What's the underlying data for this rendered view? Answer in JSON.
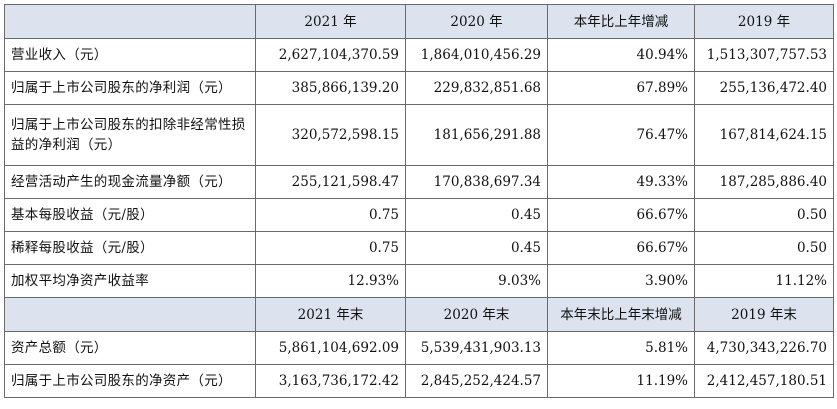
{
  "table": {
    "header1": [
      "2021 年",
      "2020 年",
      "本年比上年增减",
      "2019 年"
    ],
    "rows1": [
      {
        "label": "营业收入（元）",
        "values": [
          "2,627,104,370.59",
          "1,864,010,456.29",
          "40.94%",
          "1,513,307,757.53"
        ]
      },
      {
        "label": "归属于上市公司股东的净利润（元）",
        "values": [
          "385,866,139.20",
          "229,832,851.68",
          "67.89%",
          "255,136,472.40"
        ]
      },
      {
        "label": "归属于上市公司股东的扣除非经常性损益的净利润（元）",
        "values": [
          "320,572,598.15",
          "181,656,291.88",
          "76.47%",
          "167,814,624.15"
        ]
      },
      {
        "label": "经营活动产生的现金流量净额（元）",
        "values": [
          "255,121,598.47",
          "170,838,697.34",
          "49.33%",
          "187,285,886.40"
        ]
      },
      {
        "label": "基本每股收益（元/股）",
        "values": [
          "0.75",
          "0.45",
          "66.67%",
          "0.50"
        ]
      },
      {
        "label": "稀释每股收益（元/股）",
        "values": [
          "0.75",
          "0.45",
          "66.67%",
          "0.50"
        ]
      },
      {
        "label": "加权平均净资产收益率",
        "values": [
          "12.93%",
          "9.03%",
          "3.90%",
          "11.12%"
        ]
      }
    ],
    "header2": [
      "2021 年末",
      "2020 年末",
      "本年末比上年末增减",
      "2019 年末"
    ],
    "rows2": [
      {
        "label": "资产总额（元）",
        "values": [
          "5,861,104,692.09",
          "5,539,431,903.13",
          "5.81%",
          "4,730,343,226.70"
        ]
      },
      {
        "label": "归属于上市公司股东的净资产（元）",
        "values": [
          "3,163,736,172.42",
          "2,845,252,424.57",
          "11.19%",
          "2,412,457,180.51"
        ]
      }
    ]
  }
}
